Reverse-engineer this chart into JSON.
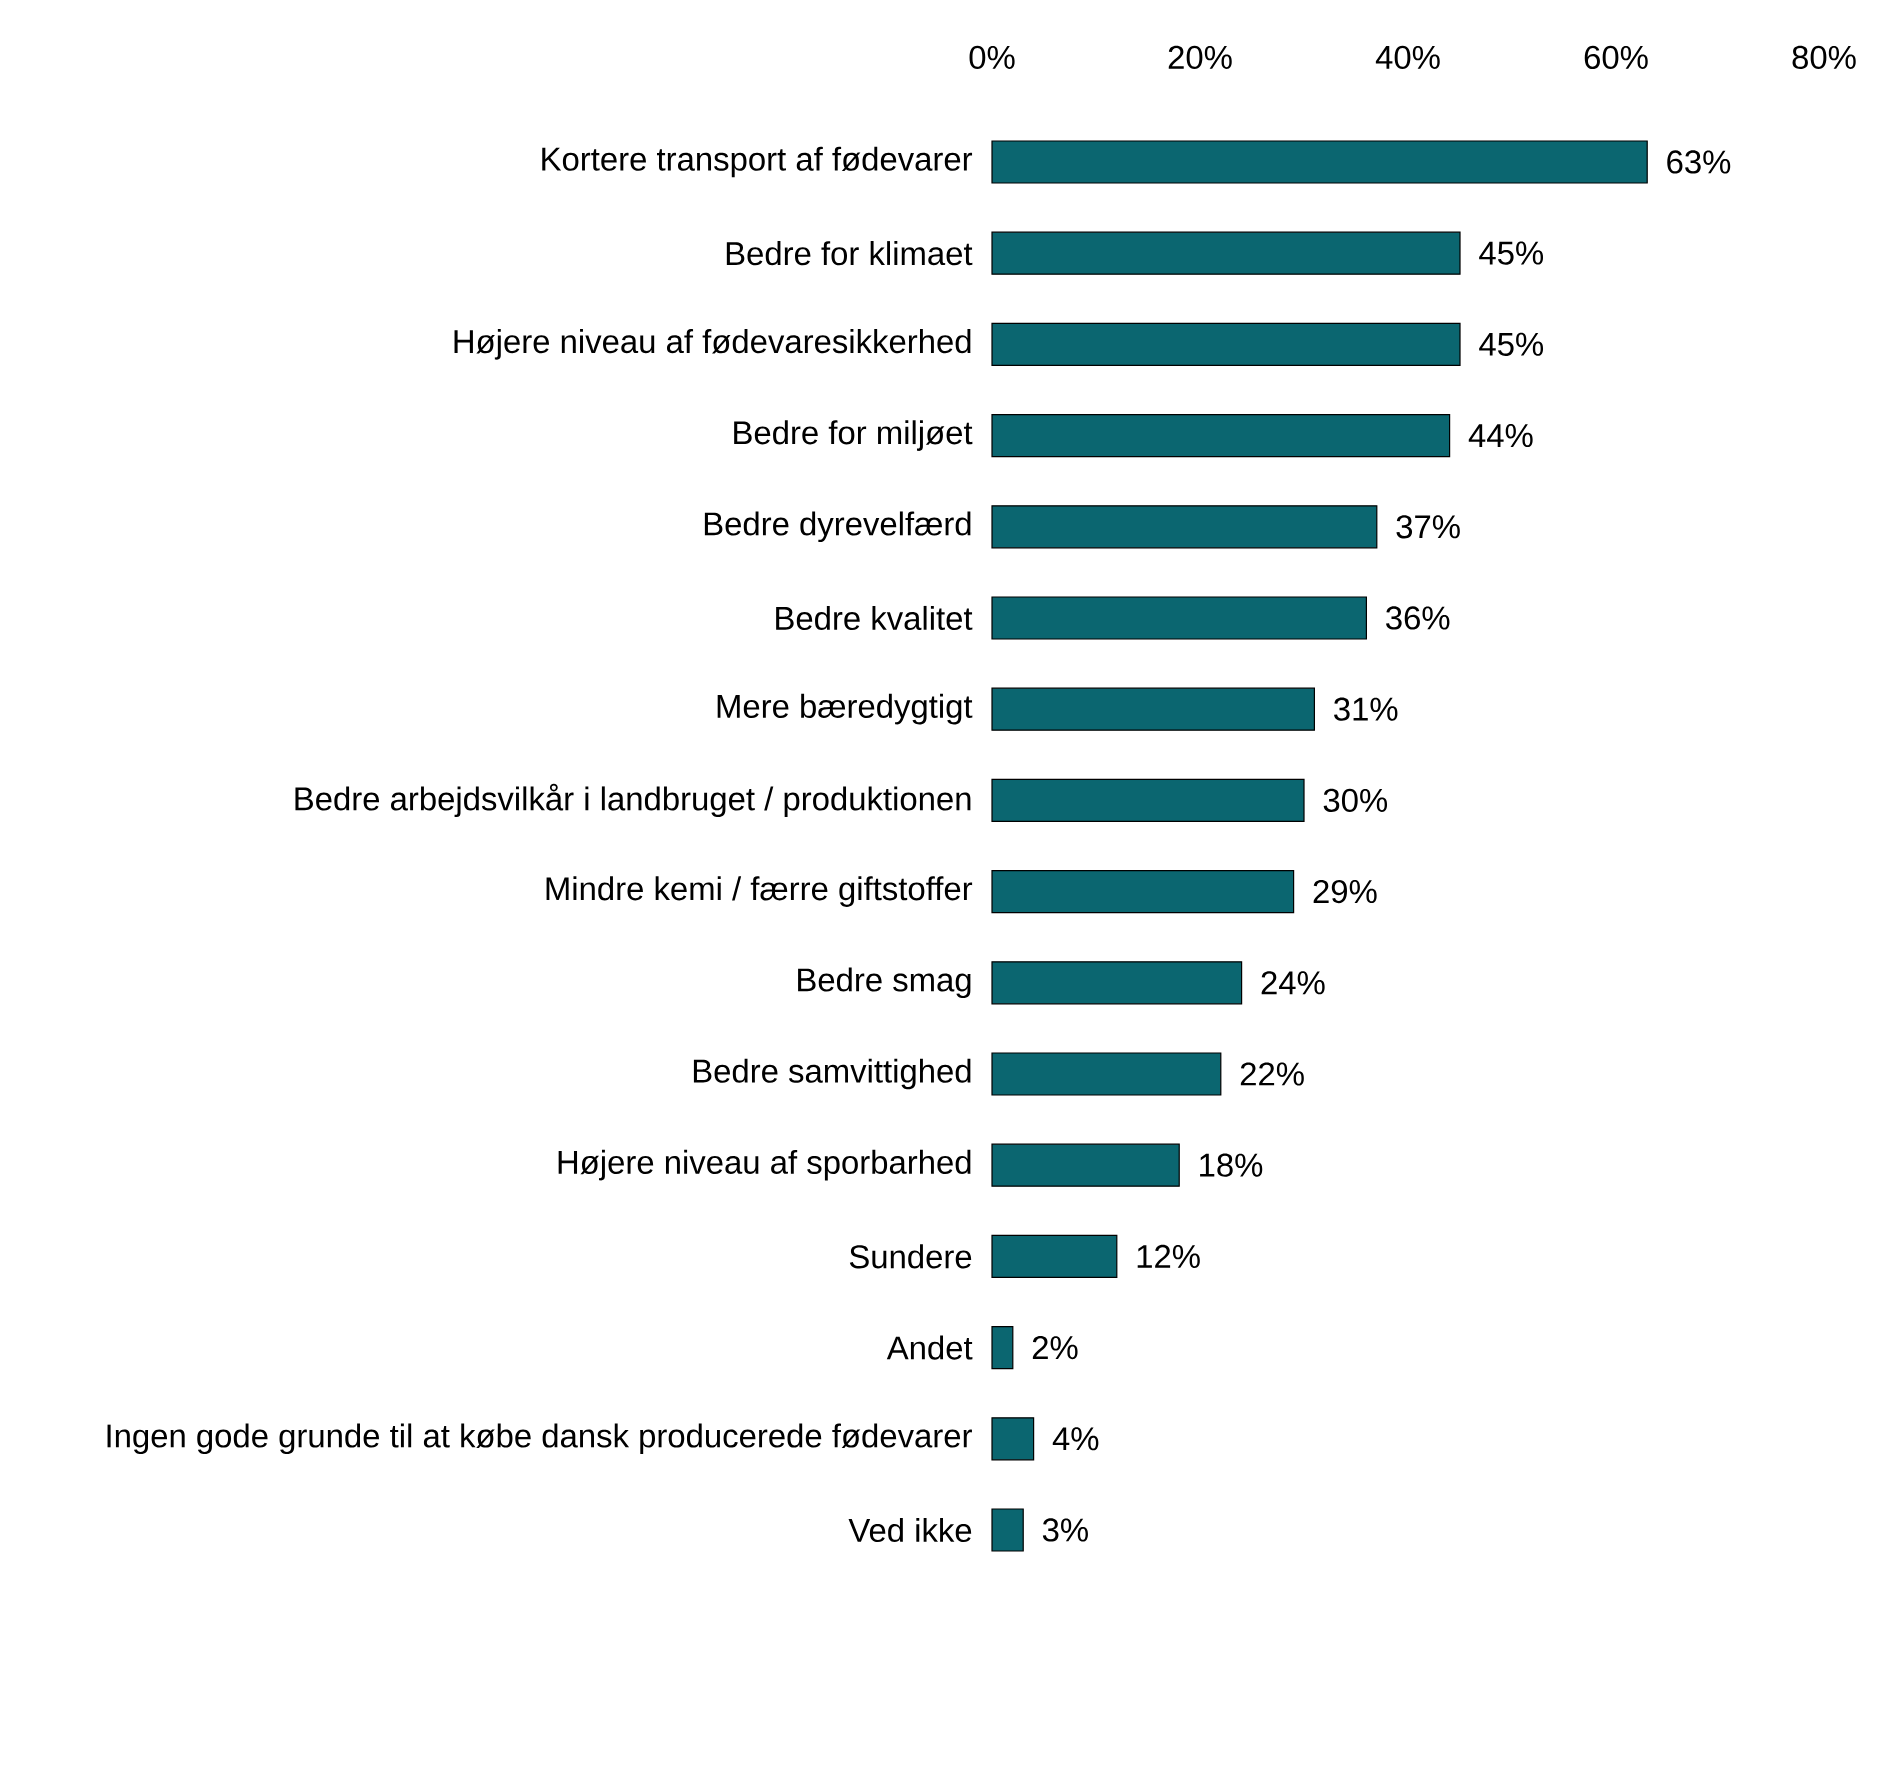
{
  "chart_data": {
    "type": "bar",
    "orientation": "horizontal",
    "categories": [
      "Kortere transport af fødevarer",
      "Bedre for klimaet",
      "Højere niveau af fødevaresikkerhed",
      "Bedre for miljøet",
      "Bedre dyrevelfærd",
      "Bedre kvalitet",
      "Mere bæredygtigt",
      "Bedre arbejdsvilkår i landbruget / produktionen",
      "Mindre kemi / færre giftstoffer",
      "Bedre smag",
      "Bedre samvittighed",
      "Højere niveau af sporbarhed",
      "Sundere",
      "Andet",
      "Ingen gode grunde til at købe dansk producerede fødevarer",
      "Ved ikke"
    ],
    "values": [
      63,
      45,
      45,
      44,
      37,
      36,
      31,
      30,
      29,
      24,
      22,
      18,
      12,
      2,
      4,
      3
    ],
    "value_labels": [
      "63%",
      "45%",
      "45%",
      "44%",
      "37%",
      "36%",
      "31%",
      "30%",
      "29%",
      "24%",
      "22%",
      "18%",
      "12%",
      "2%",
      "4%",
      "3%"
    ],
    "color": "#0b6670",
    "xlim": [
      0,
      80
    ],
    "xticks": [
      {
        "value": 0,
        "label": "0%"
      },
      {
        "value": 20,
        "label": "20%"
      },
      {
        "value": 40,
        "label": "40%"
      },
      {
        "value": 60,
        "label": "60%"
      },
      {
        "value": 80,
        "label": "80%"
      }
    ]
  }
}
